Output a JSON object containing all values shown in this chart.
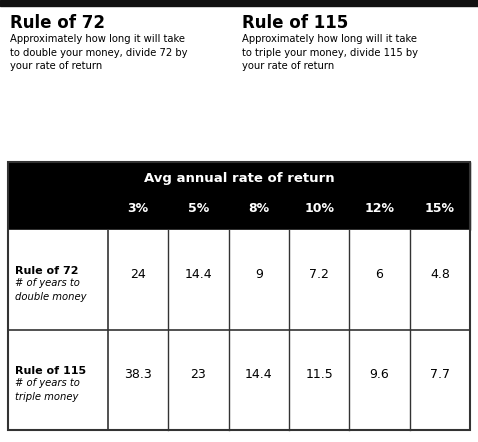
{
  "top_bar_color": "#111111",
  "header_bg_color": "#000000",
  "header_text_color": "#ffffff",
  "body_bg_color": "#ffffff",
  "body_text_color": "#000000",
  "grid_line_color": "#333333",
  "rule72_title": "Rule of 72",
  "rule72_desc": "Approximately how long it will take\nto double your money, divide 72 by\nyour rate of return",
  "rule115_title": "Rule of 115",
  "rule115_desc": "Approximately how long will it take\nto triple your money, divide 115 by\nyour rate of return",
  "table_header": "Avg annual rate of return",
  "col_headers": [
    "3%",
    "5%",
    "8%",
    "10%",
    "12%",
    "15%"
  ],
  "row1_label_bold": "Rule of 72",
  "row1_label_italic": "# of years to\ndouble money",
  "row1_values": [
    "24",
    "14.4",
    "9",
    "7.2",
    "6",
    "4.8"
  ],
  "row2_label_bold": "Rule of 115",
  "row2_label_italic": "# of years to\ntriple money",
  "row2_values": [
    "38.3",
    "23",
    "14.4",
    "11.5",
    "9.6",
    "7.7"
  ],
  "fig_width": 4.78,
  "fig_height": 4.42,
  "dpi": 100
}
